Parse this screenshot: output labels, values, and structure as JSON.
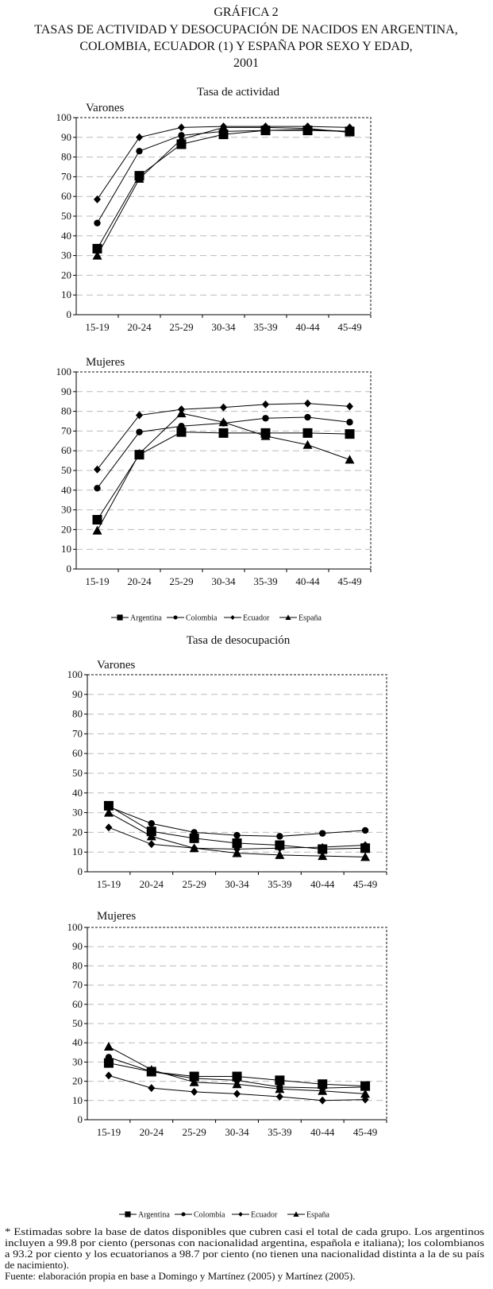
{
  "title": {
    "line1": "GRÁFICA 2",
    "line2": "TASAS DE ACTIVIDAD Y DESOCUPACIÓN DE NACIDOS EN ARGENTINA,",
    "line3": "COLOMBIA, ECUADOR (1) Y ESPAÑA POR SEXO Y EDAD,",
    "line4": "2001"
  },
  "sections": {
    "activity": "Tasa de actividad",
    "unemployment": "Tasa de desocupación"
  },
  "legend": [
    "Argentina",
    "Colombia",
    "Ecuador",
    "España"
  ],
  "footnote": {
    "lines": [
      "* Estimadas sobre la base de datos disponibles que cubren casi el total de cada grupo. Los argentinos",
      "incluyen a 99.8 por ciento (personas con nacionalidad argentina, española e italiana); los colombianos",
      "a 93.2 por ciento y los ecuatorianos a 98.7 por ciento (no tienen una nacionalidad distinta a la de su país",
      "de nacimiento).",
      "Fuente: elaboración propia en base a Domingo y Martínez (2005) y Martínez (2005)."
    ]
  },
  "chart_data": [
    {
      "type": "line",
      "title": "Varones",
      "section": "Tasa de actividad",
      "categories": [
        "15-19",
        "20-24",
        "25-29",
        "30-34",
        "35-39",
        "40-44",
        "45-49"
      ],
      "yticks": [
        "0",
        "10",
        "20",
        "30",
        "40",
        "50",
        "60",
        "70",
        "80",
        "90",
        "100"
      ],
      "ylim": [
        0,
        100
      ],
      "grid": true,
      "series": [
        {
          "name": "Argentina",
          "marker": "square",
          "values": [
            33.5,
            70.5,
            86.5,
            91.5,
            93.5,
            93.5,
            93
          ]
        },
        {
          "name": "Colombia",
          "marker": "circle",
          "values": [
            46.5,
            83,
            91,
            93,
            93.5,
            94,
            93
          ]
        },
        {
          "name": "Ecuador",
          "marker": "diamond",
          "values": [
            58.5,
            90,
            95,
            95.5,
            95.5,
            95.5,
            95
          ]
        },
        {
          "name": "España",
          "marker": "triangle",
          "values": [
            30,
            69,
            89,
            95,
            95,
            94.5,
            92.5
          ]
        }
      ]
    },
    {
      "type": "line",
      "title": "Mujeres",
      "section": "Tasa de actividad",
      "categories": [
        "15-19",
        "20-24",
        "25-29",
        "30-34",
        "35-39",
        "40-44",
        "45-49"
      ],
      "yticks": [
        "0",
        "10",
        "20",
        "30",
        "40",
        "50",
        "60",
        "70",
        "80",
        "90",
        "100"
      ],
      "ylim": [
        0,
        100
      ],
      "grid": true,
      "series": [
        {
          "name": "Argentina",
          "marker": "square",
          "values": [
            25,
            58,
            69.5,
            69,
            69,
            69,
            68.5
          ]
        },
        {
          "name": "Colombia",
          "marker": "circle",
          "values": [
            41,
            69.5,
            72.5,
            74,
            76.5,
            77,
            74.5
          ]
        },
        {
          "name": "Ecuador",
          "marker": "diamond",
          "values": [
            50.5,
            78,
            81,
            82,
            83.5,
            84,
            82.5
          ]
        },
        {
          "name": "España",
          "marker": "triangle",
          "values": [
            19.5,
            58.5,
            79,
            74.5,
            67.5,
            63,
            55.5
          ]
        }
      ]
    },
    {
      "type": "line",
      "title": "Varones",
      "section": "Tasa de desocupación",
      "categories": [
        "15-19",
        "20-24",
        "25-29",
        "30-34",
        "35-39",
        "40-44",
        "45-49"
      ],
      "yticks": [
        "0",
        "10",
        "20",
        "30",
        "40",
        "50",
        "60",
        "70",
        "80",
        "90",
        "100"
      ],
      "ylim": [
        0,
        100
      ],
      "grid": true,
      "series": [
        {
          "name": "Argentina",
          "marker": "square",
          "values": [
            33.5,
            20.5,
            17,
            14.5,
            13.5,
            11.5,
            12
          ]
        },
        {
          "name": "Colombia",
          "marker": "circle",
          "values": [
            33,
            24.5,
            20,
            18.5,
            18,
            19.5,
            21
          ]
        },
        {
          "name": "Ecuador",
          "marker": "diamond",
          "values": [
            22.5,
            14,
            12,
            11.5,
            12,
            12.5,
            13.5
          ]
        },
        {
          "name": "España",
          "marker": "triangle",
          "values": [
            30,
            18,
            12,
            9.5,
            8.5,
            8,
            7.5
          ]
        }
      ]
    },
    {
      "type": "line",
      "title": "Mujeres",
      "section": "Tasa de desocupación",
      "categories": [
        "15-19",
        "20-24",
        "25-29",
        "30-34",
        "35-39",
        "40-44",
        "45-49"
      ],
      "yticks": [
        "0",
        "10",
        "20",
        "30",
        "40",
        "50",
        "60",
        "70",
        "80",
        "90",
        "100"
      ],
      "ylim": [
        0,
        100
      ],
      "grid": true,
      "series": [
        {
          "name": "Argentina",
          "marker": "square",
          "values": [
            29.5,
            25,
            22.5,
            22.5,
            20.5,
            18.5,
            17.5
          ]
        },
        {
          "name": "Colombia",
          "marker": "circle",
          "values": [
            32.5,
            25,
            21.5,
            20.5,
            17,
            16.5,
            17
          ]
        },
        {
          "name": "Ecuador",
          "marker": "diamond",
          "values": [
            23,
            16.5,
            14.5,
            13.5,
            12,
            10,
            10.5
          ]
        },
        {
          "name": "España",
          "marker": "triangle",
          "values": [
            38,
            26,
            19.5,
            18.5,
            16,
            15,
            13.5
          ]
        }
      ]
    }
  ]
}
